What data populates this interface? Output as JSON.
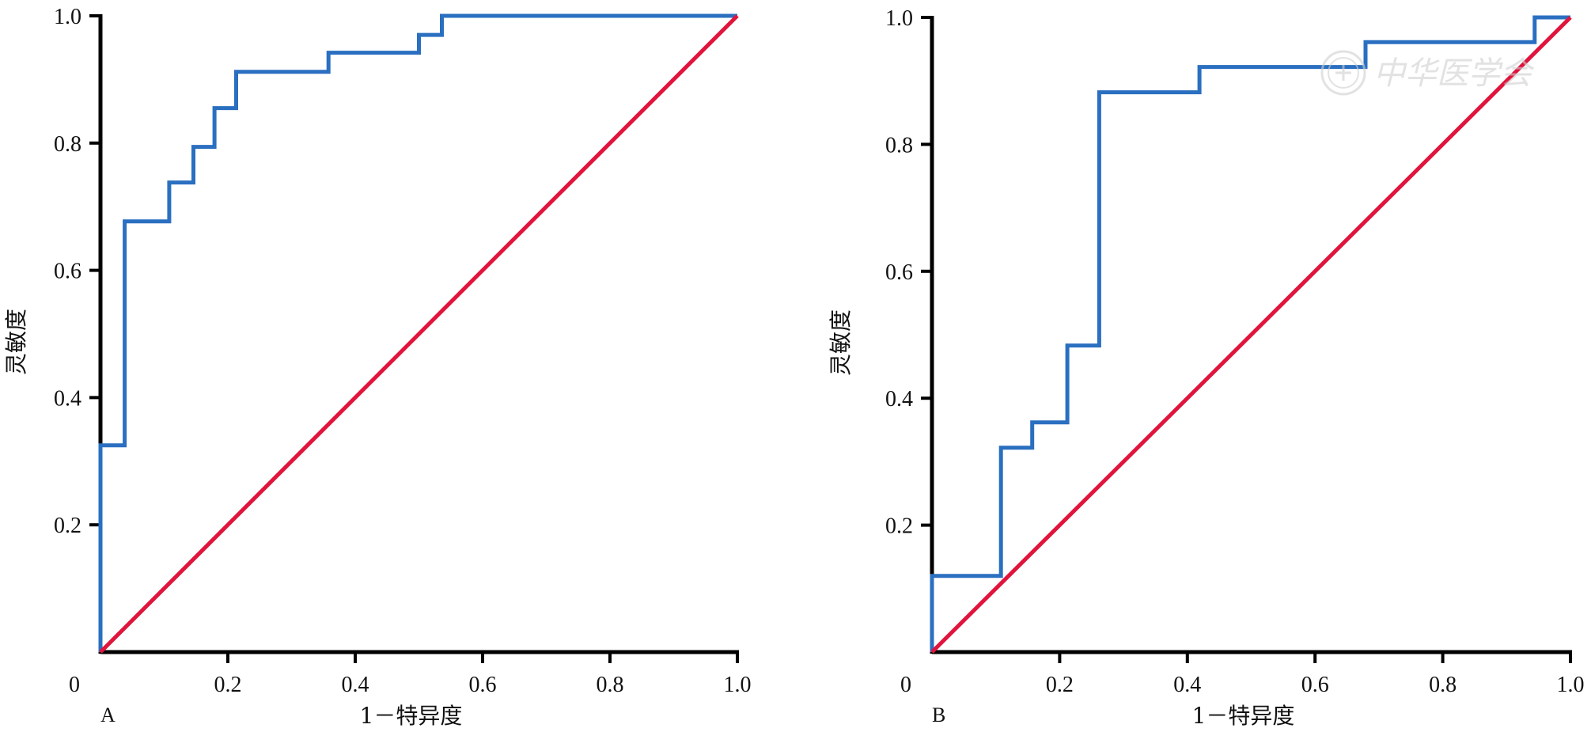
{
  "chart_data": [
    {
      "type": "line",
      "panel_label": "A",
      "xlabel": "1－特异度",
      "ylabel": "灵敏度",
      "xlim": [
        0,
        1.0
      ],
      "ylim": [
        0,
        1.0
      ],
      "x_ticks": [
        "0",
        "0.2",
        "0.4",
        "0.6",
        "0.8",
        "1.0"
      ],
      "y_ticks": [
        "0.2",
        "0.4",
        "0.6",
        "0.8",
        "1.0"
      ],
      "grid": false,
      "series": [
        {
          "color": "#2a6fc0",
          "points": [
            [
              0,
              0
            ],
            [
              0,
              0.325
            ],
            [
              0.038,
              0.325
            ],
            [
              0.038,
              0.677
            ],
            [
              0.108,
              0.677
            ],
            [
              0.108,
              0.738
            ],
            [
              0.146,
              0.738
            ],
            [
              0.146,
              0.794
            ],
            [
              0.179,
              0.794
            ],
            [
              0.179,
              0.855
            ],
            [
              0.213,
              0.855
            ],
            [
              0.213,
              0.912
            ],
            [
              0.358,
              0.912
            ],
            [
              0.358,
              0.942
            ],
            [
              0.5,
              0.942
            ],
            [
              0.5,
              0.97
            ],
            [
              0.536,
              0.97
            ],
            [
              0.536,
              1.0
            ],
            [
              1.0,
              1.0
            ]
          ]
        },
        {
          "color": "#e0143c",
          "points": [
            [
              0,
              0
            ],
            [
              1.0,
              1.0
            ]
          ]
        }
      ]
    },
    {
      "type": "line",
      "panel_label": "B",
      "xlabel": "1－特异度",
      "ylabel": "灵敏度",
      "xlim": [
        0,
        1.0
      ],
      "ylim": [
        0,
        1.0
      ],
      "x_ticks": [
        "0",
        "0.2",
        "0.4",
        "0.6",
        "0.8",
        "1.0"
      ],
      "y_ticks": [
        "0.2",
        "0.4",
        "0.6",
        "0.8",
        "1.0"
      ],
      "grid": false,
      "series": [
        {
          "color": "#2a6fc0",
          "points": [
            [
              0,
              0
            ],
            [
              0,
              0.12
            ],
            [
              0.108,
              0.12
            ],
            [
              0.108,
              0.322
            ],
            [
              0.157,
              0.322
            ],
            [
              0.157,
              0.362
            ],
            [
              0.212,
              0.362
            ],
            [
              0.212,
              0.483
            ],
            [
              0.262,
              0.483
            ],
            [
              0.262,
              0.882
            ],
            [
              0.419,
              0.882
            ],
            [
              0.419,
              0.922
            ],
            [
              0.679,
              0.922
            ],
            [
              0.679,
              0.961
            ],
            [
              0.944,
              0.961
            ],
            [
              0.944,
              1.0
            ],
            [
              1.0,
              1.0
            ]
          ]
        },
        {
          "color": "#e0143c",
          "points": [
            [
              0,
              0
            ],
            [
              1.0,
              1.0
            ]
          ]
        }
      ]
    }
  ],
  "watermark": {
    "text": "中华医学会",
    "icon": "seal-emblem-icon"
  }
}
